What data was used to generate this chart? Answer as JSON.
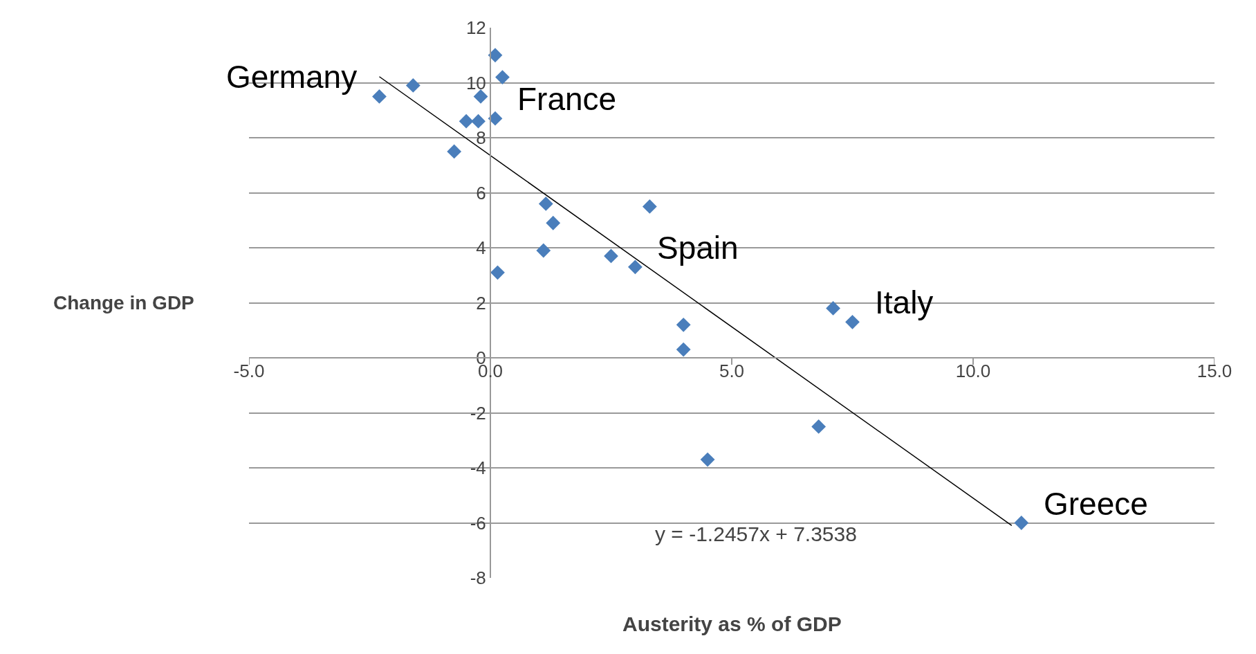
{
  "chart_data": {
    "type": "scatter",
    "xlabel": "Austerity as % of GDP",
    "ylabel": "Change in GDP",
    "xlim": [
      -5,
      15
    ],
    "xticks": [
      {
        "value": -5,
        "label": "-5.0"
      },
      {
        "value": 0,
        "label": "0.0"
      },
      {
        "value": 5,
        "label": "5.0"
      },
      {
        "value": 10,
        "label": "10.0"
      },
      {
        "value": 15,
        "label": "15.0"
      }
    ],
    "ylim": [
      -8,
      12
    ],
    "yticks": [
      -8,
      -6,
      -4,
      -2,
      0,
      2,
      4,
      6,
      8,
      10,
      12
    ],
    "grid": "y",
    "legend": false,
    "marker": "diamond",
    "series": [
      {
        "color": "#4a7ebb",
        "x": [
          -2.3,
          -1.6,
          0.1,
          0.25,
          -0.2,
          0.1,
          -0.5,
          -0.25,
          -0.75,
          1.15,
          1.3,
          1.1,
          0.15,
          2.5,
          3.3,
          3.0,
          4.0,
          4.0,
          4.5,
          6.8,
          7.1,
          7.5,
          11.0
        ],
        "values": [
          9.5,
          9.9,
          11.0,
          10.2,
          9.5,
          8.7,
          8.6,
          8.6,
          7.5,
          5.6,
          4.9,
          3.9,
          3.1,
          3.7,
          5.5,
          3.3,
          1.2,
          0.3,
          -3.7,
          -2.5,
          1.8,
          1.3,
          -6.0
        ]
      },
      {
        "type": "line",
        "color": "#000000",
        "marker": "none",
        "x": [
          -2.3,
          10.8
        ],
        "values": [
          10.22,
          -6.1
        ]
      }
    ],
    "annotations": [
      {
        "text": "Germany",
        "x": -2.3,
        "y": 9.5
      },
      {
        "text": "France",
        "x": 0.1,
        "y": 8.7
      },
      {
        "text": "Spain",
        "x": 3.0,
        "y": 3.3
      },
      {
        "text": "Italy",
        "x": 7.5,
        "y": 1.3
      },
      {
        "text": "Greece",
        "x": 11.0,
        "y": -6.0
      },
      "y = -1.2457x + 7.3538"
    ]
  }
}
